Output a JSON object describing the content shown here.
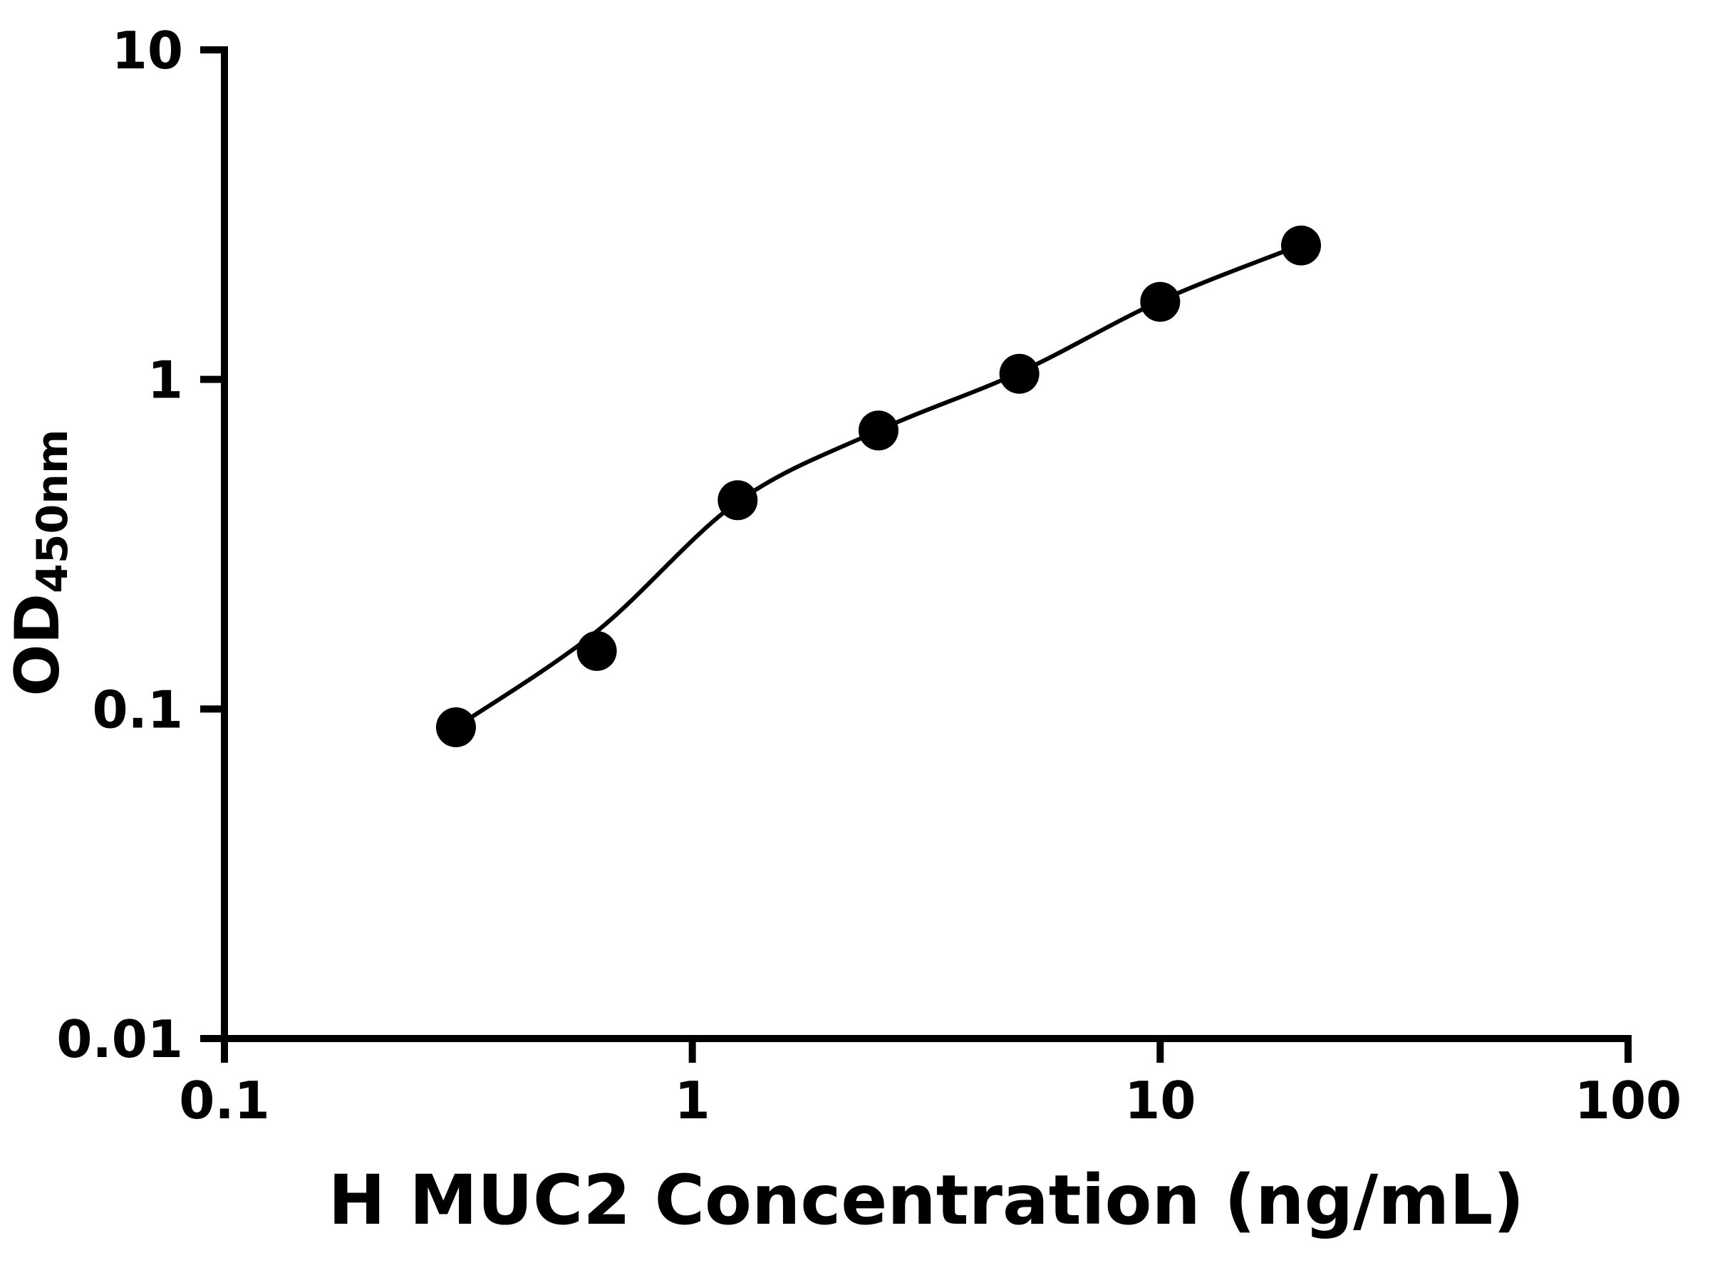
{
  "chart_data": {
    "type": "scatter",
    "title": "",
    "xlabel": "H MUC2 Concentration (ng/mL)",
    "ylabel": "OD450nm",
    "ylabel_main": "OD",
    "ylabel_sub": "450nm",
    "xscale": "log",
    "yscale": "log",
    "xlim": [
      0.1,
      100
    ],
    "ylim": [
      0.01,
      10
    ],
    "x_tick_labels": [
      "0.1",
      "1",
      "10",
      "100"
    ],
    "y_tick_labels": [
      "0.01",
      "0.1",
      "1",
      "10"
    ],
    "x": [
      0.3125,
      0.625,
      1.25,
      2.5,
      5,
      10,
      20
    ],
    "y": [
      0.088,
      0.15,
      0.43,
      0.7,
      1.04,
      1.72,
      2.55
    ],
    "fit_curve_y": [
      0.088,
      0.172,
      0.425,
      0.7,
      1.05,
      1.73,
      2.56
    ],
    "marker_color": "#000000",
    "line_color": "#000000",
    "axis_color": "#000000",
    "background_color": "#ffffff",
    "grid": false,
    "legend_position": "none"
  }
}
